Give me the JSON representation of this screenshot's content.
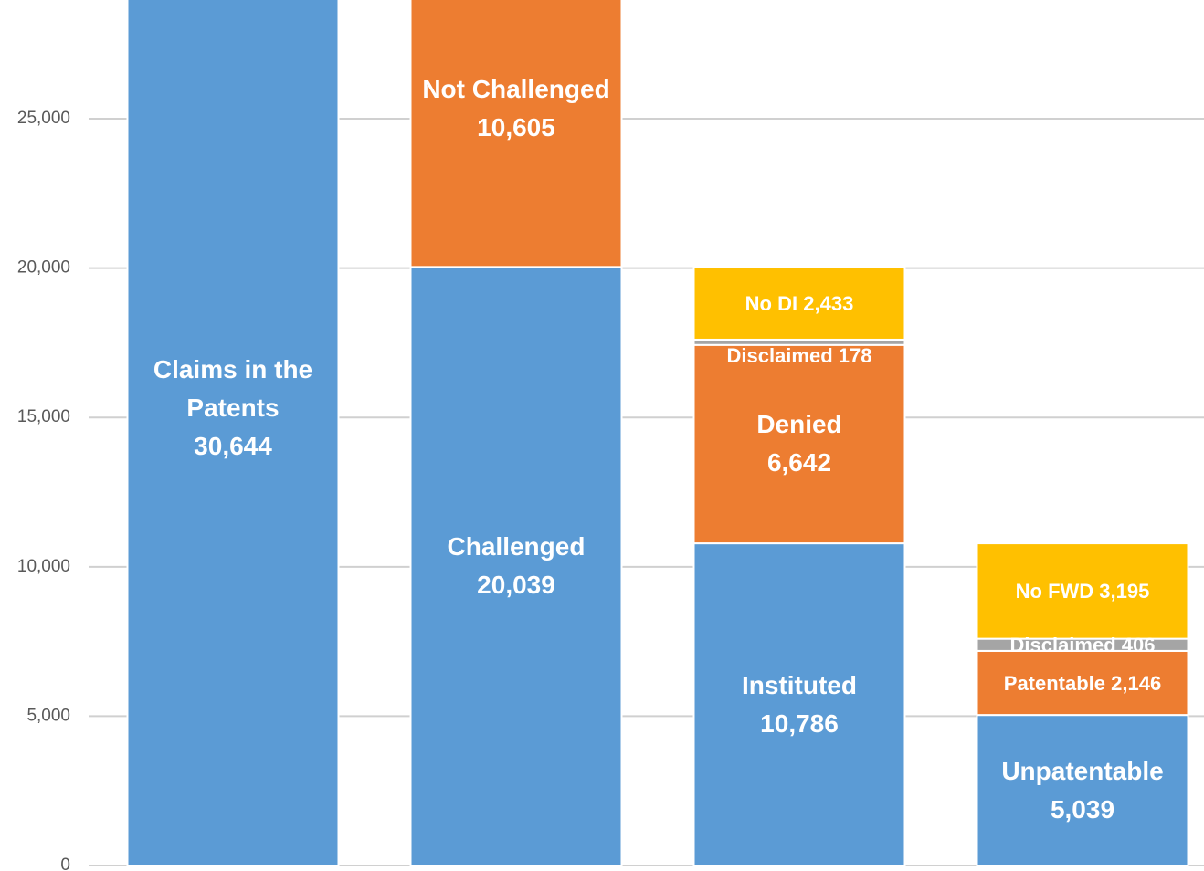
{
  "chart_data": {
    "type": "stacked_bar",
    "ylim": [
      0,
      28800
    ],
    "yticks": [
      0,
      {
        "value": 5000,
        "label": "5,000"
      },
      {
        "value": 10000,
        "label": "10,000"
      },
      {
        "value": 15000,
        "label": "15,000"
      },
      {
        "value": 20000,
        "label": "20,000"
      },
      {
        "value": 25000,
        "label": "25,000"
      }
    ],
    "grid": true,
    "stacks": [
      {
        "segments": [
          {
            "name": "Claims in the Patents",
            "value": 30644,
            "value_label": "30,644",
            "color": "#5b9bd5"
          }
        ]
      },
      {
        "segments": [
          {
            "name": "Challenged",
            "value": 20039,
            "value_label": "20,039",
            "color": "#5b9bd5"
          },
          {
            "name": "Not Challenged",
            "value": 10605,
            "value_label": "10,605",
            "color": "#ed7d31"
          }
        ]
      },
      {
        "segments": [
          {
            "name": "Instituted",
            "value": 10786,
            "value_label": "10,786",
            "color": "#5b9bd5"
          },
          {
            "name": "Denied",
            "value": 6642,
            "value_label": "6,642",
            "color": "#ed7d31"
          },
          {
            "name": "Disclaimed",
            "value": 178,
            "value_label": "178",
            "color": "#a5a5a5"
          },
          {
            "name": "No DI",
            "value": 2433,
            "value_label": "2,433",
            "color": "#ffc000"
          }
        ]
      },
      {
        "segments": [
          {
            "name": "Unpatentable",
            "value": 5039,
            "value_label": "5,039",
            "color": "#5b9bd5"
          },
          {
            "name": "Patentable",
            "value": 2146,
            "value_label": "2,146",
            "color": "#ed7d31"
          },
          {
            "name": "Disclaimed",
            "value": 406,
            "value_label": "406",
            "color": "#a5a5a5"
          },
          {
            "name": "No FWD",
            "value": 3195,
            "value_label": "3,195",
            "color": "#ffc000"
          }
        ]
      }
    ]
  }
}
